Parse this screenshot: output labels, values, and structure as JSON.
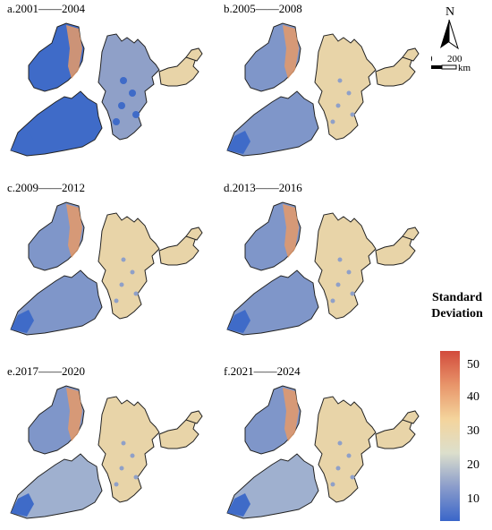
{
  "panels": [
    {
      "id": "a",
      "title": "a.2001——2004"
    },
    {
      "id": "b",
      "title": "b.2005——2008"
    },
    {
      "id": "c",
      "title": "c.2009——2012"
    },
    {
      "id": "d",
      "title": "d.2013——2016"
    },
    {
      "id": "e",
      "title": "e.2017——2020"
    },
    {
      "id": "f",
      "title": "f.2021——2024"
    }
  ],
  "north_arrow": {
    "label": "N"
  },
  "scale_bar": {
    "start": "0",
    "end": "200",
    "unit": "km"
  },
  "legend": {
    "title_line1": "Standard",
    "title_line2": "Deviation",
    "ticks": [
      "50",
      "40",
      "30",
      "20",
      "10"
    ],
    "colors": [
      "#d24b3c",
      "#e8956a",
      "#f4d49c",
      "#dcdfcc",
      "#8a9ccb",
      "#3a66c9"
    ]
  },
  "palette": {
    "west_low": "#3f6bc8",
    "west_mid": "#7f96c9",
    "west_hi": "#9fb0cf",
    "central": "#e8b27e",
    "central_hi": "#e59a69",
    "east": "#e8d4a8",
    "east_spot": "#8fa0c8",
    "outline": "#222222"
  }
}
